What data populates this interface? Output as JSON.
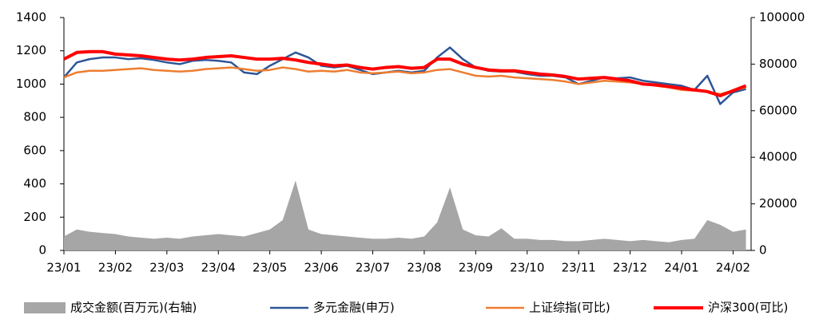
{
  "chart_data": {
    "type": "line",
    "x": [
      0,
      0.25,
      0.5,
      0.75,
      1,
      1.25,
      1.5,
      1.75,
      2,
      2.25,
      2.5,
      2.75,
      3,
      3.25,
      3.5,
      3.75,
      4,
      4.25,
      4.5,
      4.75,
      5,
      5.25,
      5.5,
      5.75,
      6,
      6.25,
      6.5,
      6.75,
      7,
      7.25,
      7.5,
      7.75,
      8,
      8.25,
      8.5,
      8.75,
      9,
      9.25,
      9.5,
      9.75,
      10,
      10.25,
      10.5,
      10.75,
      11,
      11.25,
      11.5,
      11.75,
      12,
      12.25,
      12.5,
      12.75,
      13,
      13.25
    ],
    "xlim": [
      0,
      13.35
    ],
    "xticks": [
      {
        "value": 0,
        "label": "23/01"
      },
      {
        "value": 1,
        "label": "23/02"
      },
      {
        "value": 2,
        "label": "23/03"
      },
      {
        "value": 3,
        "label": "23/04"
      },
      {
        "value": 4,
        "label": "23/05"
      },
      {
        "value": 5,
        "label": "23/06"
      },
      {
        "value": 6,
        "label": "23/07"
      },
      {
        "value": 7,
        "label": "23/08"
      },
      {
        "value": 8,
        "label": "23/09"
      },
      {
        "value": 9,
        "label": "23/10"
      },
      {
        "value": 10,
        "label": "23/11"
      },
      {
        "value": 11,
        "label": "23/12"
      },
      {
        "value": 12,
        "label": "24/01"
      },
      {
        "value": 13,
        "label": "24/02"
      }
    ],
    "ylim": [
      0,
      1400
    ],
    "yticks": [
      0,
      200,
      400,
      600,
      800,
      1000,
      1200,
      1400
    ],
    "y2lim": [
      0,
      100000
    ],
    "y2ticks": [
      0,
      20000,
      40000,
      60000,
      80000,
      100000
    ],
    "series": [
      {
        "name": "成交金额(百万元)(右轴)",
        "type": "area",
        "axis": "y2",
        "color": "#a6a6a6",
        "values": [
          6000,
          9000,
          8000,
          7500,
          7000,
          6000,
          5500,
          5000,
          5500,
          5000,
          6000,
          6500,
          7000,
          6500,
          6000,
          7500,
          9000,
          13000,
          30000,
          9000,
          7000,
          6500,
          6000,
          5500,
          5000,
          5000,
          5500,
          5000,
          6000,
          12000,
          27000,
          9000,
          6500,
          6000,
          9500,
          5000,
          5000,
          4500,
          4500,
          4000,
          4000,
          4500,
          5000,
          4500,
          4000,
          4500,
          4000,
          3500,
          4500,
          5000,
          13000,
          11000,
          8000,
          9000
        ]
      },
      {
        "name": "多元金融(申万)",
        "type": "line",
        "color": "#2e5597",
        "width": 2.5,
        "values": [
          1040,
          1130,
          1150,
          1160,
          1160,
          1150,
          1155,
          1145,
          1130,
          1120,
          1140,
          1145,
          1140,
          1130,
          1070,
          1060,
          1110,
          1150,
          1190,
          1160,
          1110,
          1100,
          1110,
          1085,
          1060,
          1070,
          1080,
          1070,
          1080,
          1160,
          1220,
          1150,
          1100,
          1080,
          1075,
          1075,
          1060,
          1050,
          1050,
          1040,
          1000,
          1020,
          1040,
          1035,
          1040,
          1020,
          1010,
          1000,
          990,
          965,
          1050,
          880,
          950,
          970
        ]
      },
      {
        "name": "上证综指(可比)",
        "type": "line",
        "color": "#ed7d31",
        "width": 2.5,
        "values": [
          1040,
          1070,
          1080,
          1080,
          1085,
          1090,
          1095,
          1085,
          1080,
          1075,
          1080,
          1090,
          1095,
          1100,
          1090,
          1080,
          1085,
          1100,
          1090,
          1075,
          1080,
          1075,
          1085,
          1070,
          1065,
          1070,
          1075,
          1065,
          1070,
          1085,
          1090,
          1070,
          1050,
          1045,
          1050,
          1040,
          1035,
          1030,
          1025,
          1015,
          1000,
          1010,
          1020,
          1015,
          1010,
          1000,
          990,
          980,
          965,
          960,
          955,
          940,
          960,
          980
        ]
      },
      {
        "name": "沪深300(可比)",
        "type": "line",
        "color": "#ff0000",
        "width": 4,
        "values": [
          1150,
          1190,
          1195,
          1195,
          1180,
          1175,
          1170,
          1160,
          1150,
          1145,
          1150,
          1160,
          1165,
          1170,
          1160,
          1150,
          1150,
          1155,
          1145,
          1130,
          1120,
          1110,
          1115,
          1100,
          1090,
          1100,
          1105,
          1095,
          1100,
          1150,
          1150,
          1120,
          1100,
          1085,
          1080,
          1080,
          1070,
          1060,
          1055,
          1045,
          1030,
          1035,
          1040,
          1030,
          1020,
          1000,
          995,
          985,
          975,
          965,
          955,
          930,
          960,
          990
        ]
      }
    ]
  }
}
